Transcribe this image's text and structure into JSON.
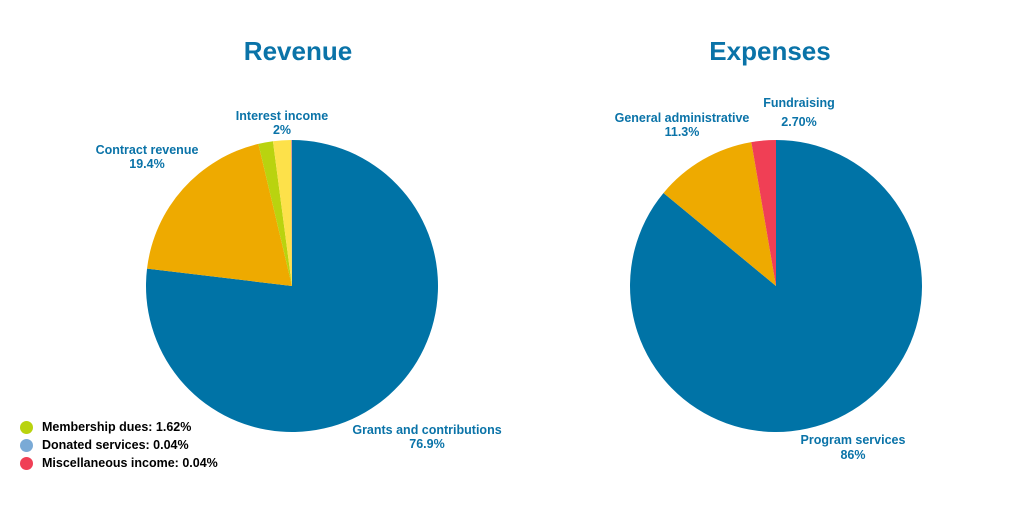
{
  "colors": {
    "title": "#0a73a8",
    "label": "#0a73a8"
  },
  "chart_data": [
    {
      "type": "pie",
      "title": "Revenue",
      "slices": [
        {
          "name": "Grants and contributions",
          "value": 76.9,
          "display": "76.9%",
          "color": "#0073a6"
        },
        {
          "name": "Contract revenue",
          "value": 19.4,
          "display": "19.4%",
          "color": "#eeaa00"
        },
        {
          "name": "Membership dues",
          "value": 1.62,
          "display": "1.62%",
          "color": "#b9d30f"
        },
        {
          "name": "Interest income",
          "value": 2,
          "display": "2%",
          "color": "#fde14a"
        },
        {
          "name": "Donated services",
          "value": 0.04,
          "display": "0.04%",
          "color": "#7aaad6"
        },
        {
          "name": "Miscellaneous income",
          "value": 0.04,
          "display": "0.04%",
          "color": "#f03f55"
        }
      ],
      "legend": [
        {
          "text": "Membership dues: 1.62%",
          "color": "#b9d30f"
        },
        {
          "text": "Donated services: 0.04%",
          "color": "#7aaad6"
        },
        {
          "text": "Miscellaneous income: 0.04%",
          "color": "#f03f55"
        }
      ]
    },
    {
      "type": "pie",
      "title": "Expenses",
      "slices": [
        {
          "name": "Program services",
          "value": 86,
          "display": "86%",
          "color": "#0073a6"
        },
        {
          "name": "General administrative",
          "value": 11.3,
          "display": "11.3%",
          "color": "#eeaa00"
        },
        {
          "name": "Fundraising",
          "value": 2.7,
          "display": "2.70%",
          "color": "#f03f55"
        }
      ]
    }
  ]
}
